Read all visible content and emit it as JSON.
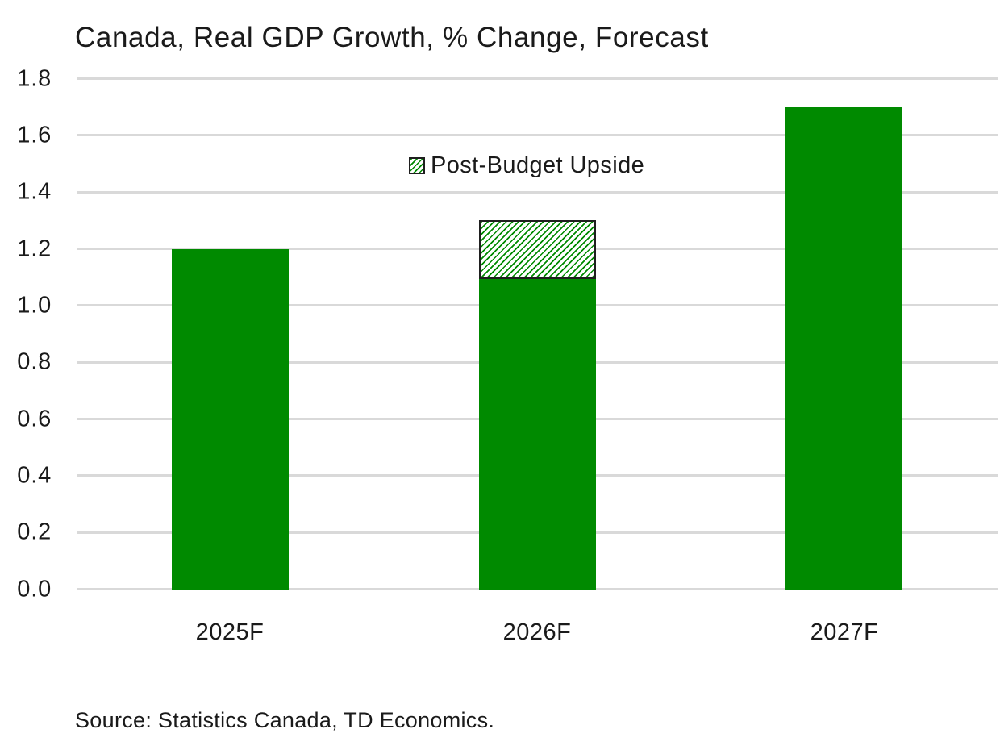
{
  "page": {
    "background": "#FFFFFF"
  },
  "colors": {
    "bar_green": "#008A00",
    "hatch_line": "#008A00",
    "hatch_bg": "#FFFFFF",
    "hatch_border": "#1F1F1F",
    "gridline": "#D9D9D9",
    "text": "#1A1A1A"
  },
  "chart_data": {
    "type": "bar",
    "stacked": true,
    "title": "Canada, Real GDP Growth, % Change, Forecast",
    "categories": [
      "2025F",
      "2026F",
      "2027F"
    ],
    "series": [
      {
        "name": "",
        "pattern": "solid",
        "color": "#008A00",
        "values": [
          1.2,
          1.1,
          1.7
        ]
      },
      {
        "name": "Post-Budget Upside",
        "pattern": "hatch",
        "color": "#008A00",
        "values": [
          0.0,
          0.2,
          0.0
        ]
      }
    ],
    "totals": [
      1.2,
      1.3,
      1.7
    ],
    "xlabel": "",
    "ylabel": "",
    "ylim": [
      0.0,
      1.8
    ],
    "ytick_step": 0.2,
    "ytick_labels": [
      "0.0",
      "0.2",
      "0.4",
      "0.6",
      "0.8",
      "1.0",
      "1.2",
      "1.4",
      "1.6",
      "1.8"
    ],
    "grid": "horizontal",
    "legend": {
      "label": "Post-Budget Upside",
      "position": "top-center",
      "swatch": "hatch"
    },
    "source": "Source: Statistics Canada, TD Economics."
  }
}
